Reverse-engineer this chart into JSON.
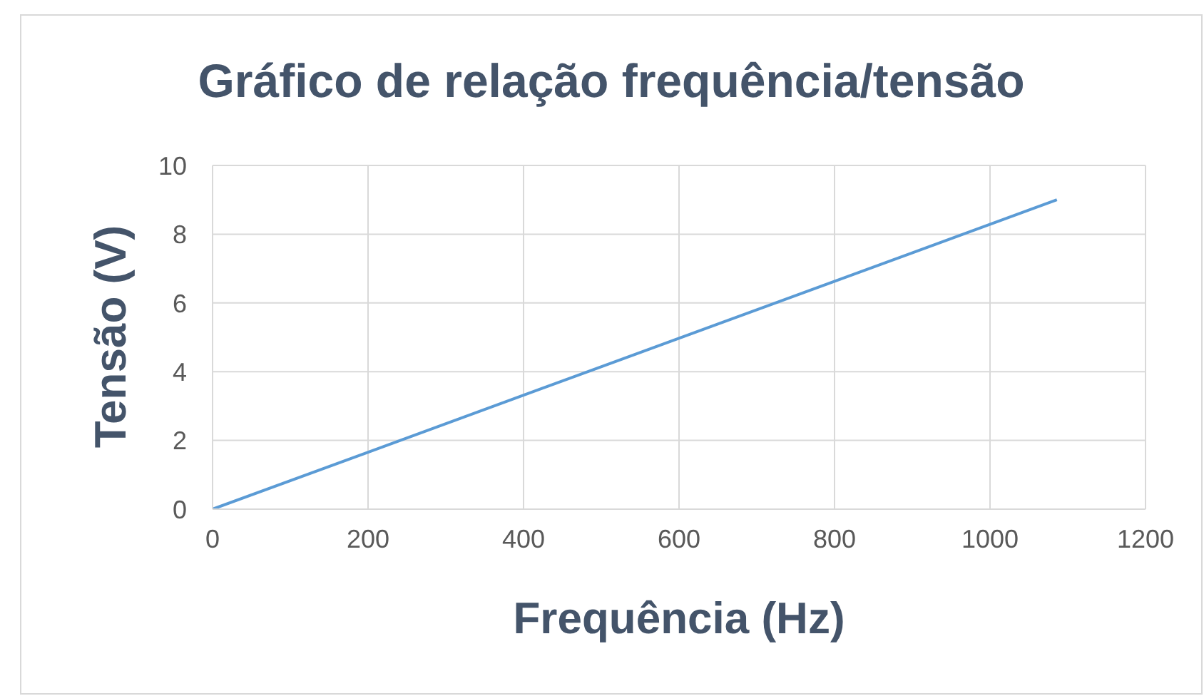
{
  "chart_data": {
    "type": "line",
    "title": "Gráfico de relação frequência/tensão",
    "xlabel": "Frequência (Hz)",
    "ylabel": "Tensão (V)",
    "x": [
      0,
      1086
    ],
    "series": [
      {
        "color": "#5b9bd5",
        "values": [
          0,
          9
        ]
      }
    ],
    "xlim": [
      0,
      1200
    ],
    "xticks": [
      0,
      200,
      400,
      600,
      800,
      1000,
      1200
    ],
    "ylim": [
      0,
      10
    ],
    "yticks": [
      0,
      2,
      4,
      6,
      8,
      10
    ],
    "grid": true,
    "marker": "none",
    "line_style": "solid"
  }
}
